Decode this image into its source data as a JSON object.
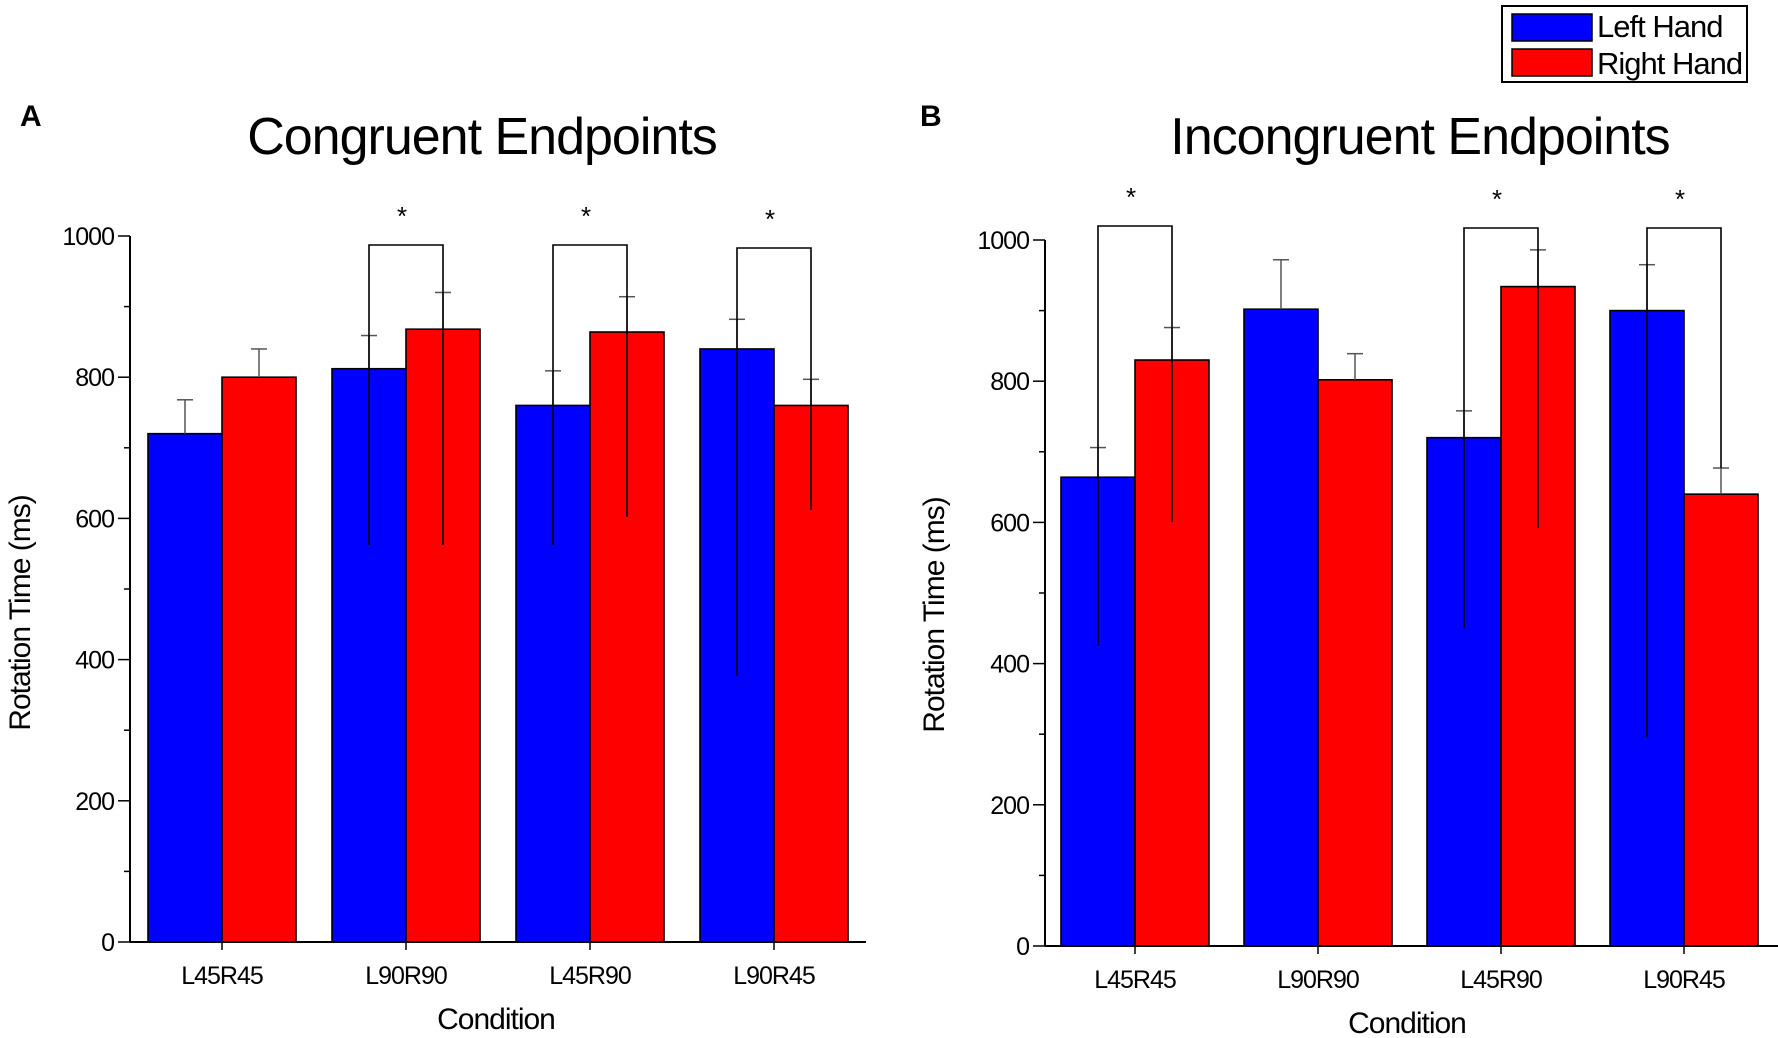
{
  "legend": {
    "left_hand_label": "Left Hand",
    "right_hand_label": "Right Hand"
  },
  "colors": {
    "left": "#0000ff",
    "right": "#ff0000"
  },
  "chart_data": [
    {
      "panel": "A",
      "type": "bar",
      "title": "Congruent Endpoints",
      "xlabel": "Condition",
      "ylabel": "Rotation Time (ms)",
      "ylim": [
        0,
        1000
      ],
      "yticks": [
        "0",
        "200",
        "400",
        "600",
        "800",
        "1000"
      ],
      "categories": [
        "L45R45",
        "L90R90",
        "L45R90",
        "L90R45"
      ],
      "series": [
        {
          "name": "Left Hand",
          "values": [
            720,
            812,
            760,
            840
          ],
          "errors": [
            48,
            47,
            49,
            42
          ]
        },
        {
          "name": "Right Hand",
          "values": [
            800,
            868,
            864,
            760
          ],
          "errors": [
            40,
            52,
            50,
            37
          ]
        }
      ],
      "significance": [
        {
          "category_index": 1,
          "label": "*"
        },
        {
          "category_index": 2,
          "label": "*"
        },
        {
          "category_index": 3,
          "label": "*"
        }
      ]
    },
    {
      "panel": "B",
      "type": "bar",
      "title": "Incongruent Endpoints",
      "xlabel": "Condition",
      "ylabel": "Rotation Time (ms)",
      "ylim": [
        0,
        1000
      ],
      "yticks": [
        "0",
        "200",
        "400",
        "600",
        "800",
        "1000"
      ],
      "categories": [
        "L45R45",
        "L90R90",
        "L45R90",
        "L90R45"
      ],
      "series": [
        {
          "name": "Left Hand",
          "values": [
            664,
            902,
            720,
            900
          ],
          "errors": [
            42,
            70,
            38,
            65
          ]
        },
        {
          "name": "Right Hand",
          "values": [
            830,
            802,
            934,
            640
          ],
          "errors": [
            46,
            37,
            52,
            37
          ]
        }
      ],
      "significance": [
        {
          "category_index": 0,
          "label": "*"
        },
        {
          "category_index": 2,
          "label": "*"
        },
        {
          "category_index": 3,
          "label": "*"
        }
      ]
    }
  ]
}
